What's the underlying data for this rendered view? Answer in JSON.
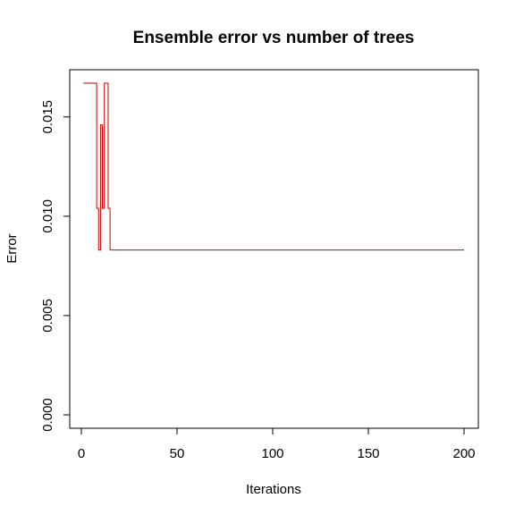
{
  "chart_data": {
    "type": "line",
    "title": "Ensemble error vs number of trees",
    "xlabel": "Iterations",
    "ylabel": "Error",
    "xlim": [
      1,
      200
    ],
    "ylim": [
      0,
      0.0167
    ],
    "x_ticks": [
      {
        "value": 0,
        "label": "0"
      },
      {
        "value": 50,
        "label": "50"
      },
      {
        "value": 100,
        "label": "100"
      },
      {
        "value": 150,
        "label": "150"
      },
      {
        "value": 200,
        "label": "200"
      }
    ],
    "y_ticks": [
      {
        "value": 0.0,
        "label": "0.000"
      },
      {
        "value": 0.005,
        "label": "0.005"
      },
      {
        "value": 0.01,
        "label": "0.010"
      },
      {
        "value": 0.015,
        "label": "0.015"
      }
    ],
    "grid": false,
    "series": [
      {
        "color": "#cc0000",
        "step": true,
        "points": [
          [
            1,
            0.0167
          ],
          [
            7,
            0.0167
          ],
          [
            8,
            0.0104
          ],
          [
            9,
            0.0083
          ],
          [
            10,
            0.0146
          ],
          [
            11,
            0.0104
          ],
          [
            12,
            0.0167
          ],
          [
            13,
            0.0167
          ],
          [
            14,
            0.0104
          ],
          [
            15,
            0.0083
          ],
          [
            200,
            0.0083
          ]
        ]
      }
    ]
  }
}
